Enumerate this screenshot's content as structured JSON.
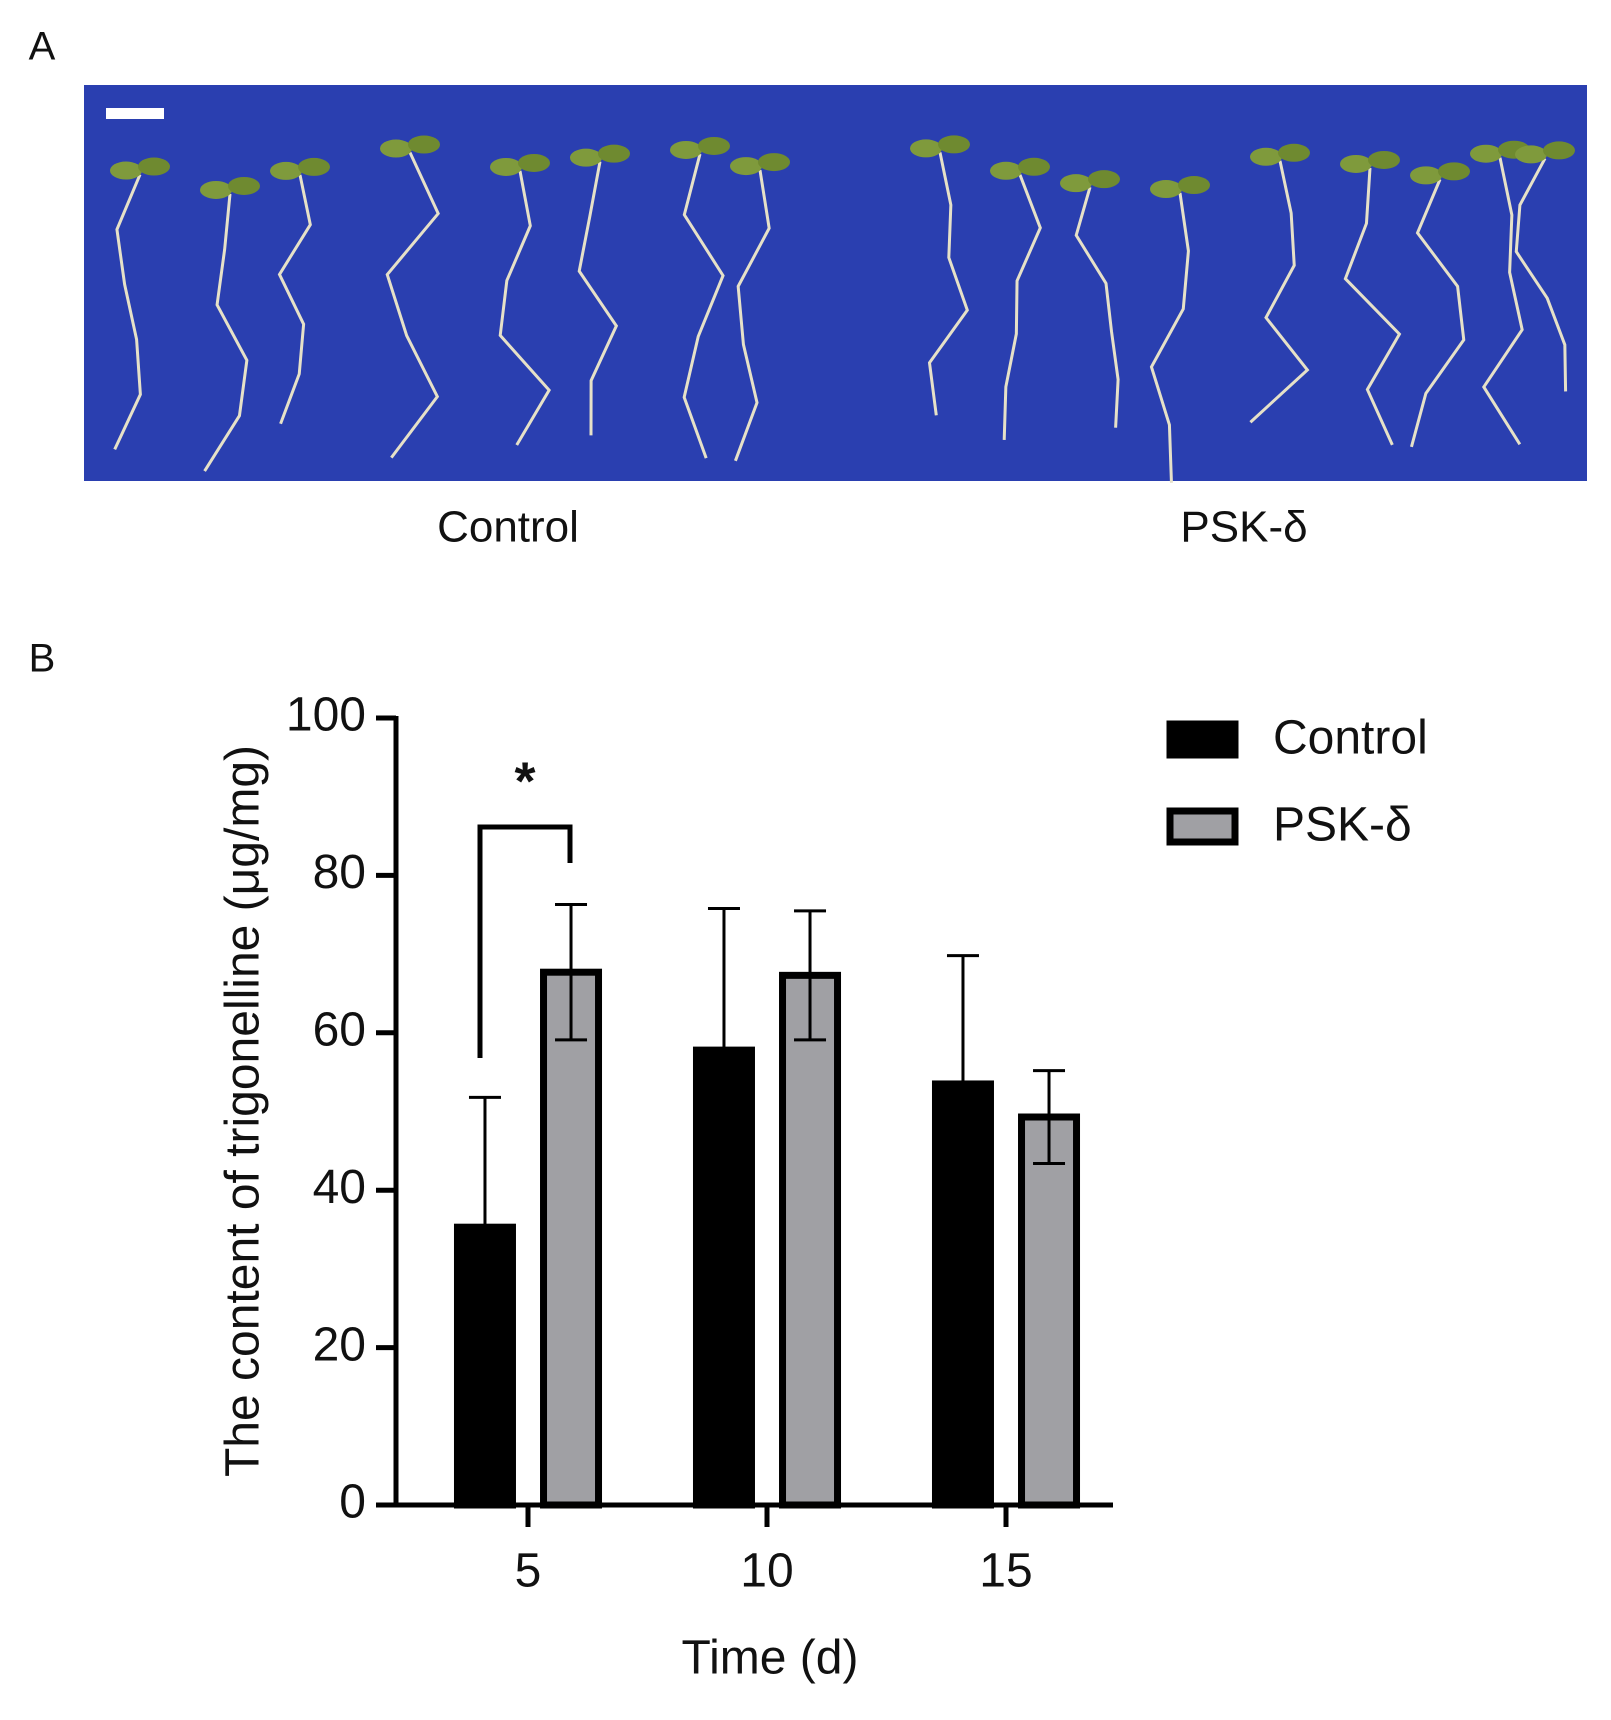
{
  "panel_labels": [
    "A",
    "B"
  ],
  "photo": {
    "labels": [
      "Control",
      "PSK-δ"
    ]
  },
  "chart_data": {
    "type": "bar",
    "x_label": "Time (d)",
    "y_label": "The content of trigonelline (μg/mg)",
    "categories": [
      "5",
      "10",
      "15"
    ],
    "series": [
      {
        "name": "Control",
        "color": "#000000",
        "values": [
          35.3,
          57.8,
          53.5
        ],
        "errors": [
          16.5,
          18,
          16.3
        ]
      },
      {
        "name": "PSK-δ",
        "color": "#a0a0a4",
        "values": [
          67.7,
          67.3,
          49.3
        ],
        "errors": [
          8.6,
          8.2,
          5.9
        ]
      }
    ],
    "ylim": [
      0,
      100
    ],
    "yticks": [
      0,
      20,
      40,
      60,
      80,
      100
    ],
    "grid": false,
    "legend": "upper-right",
    "annotations": [
      {
        "text": "*"
      }
    ]
  }
}
